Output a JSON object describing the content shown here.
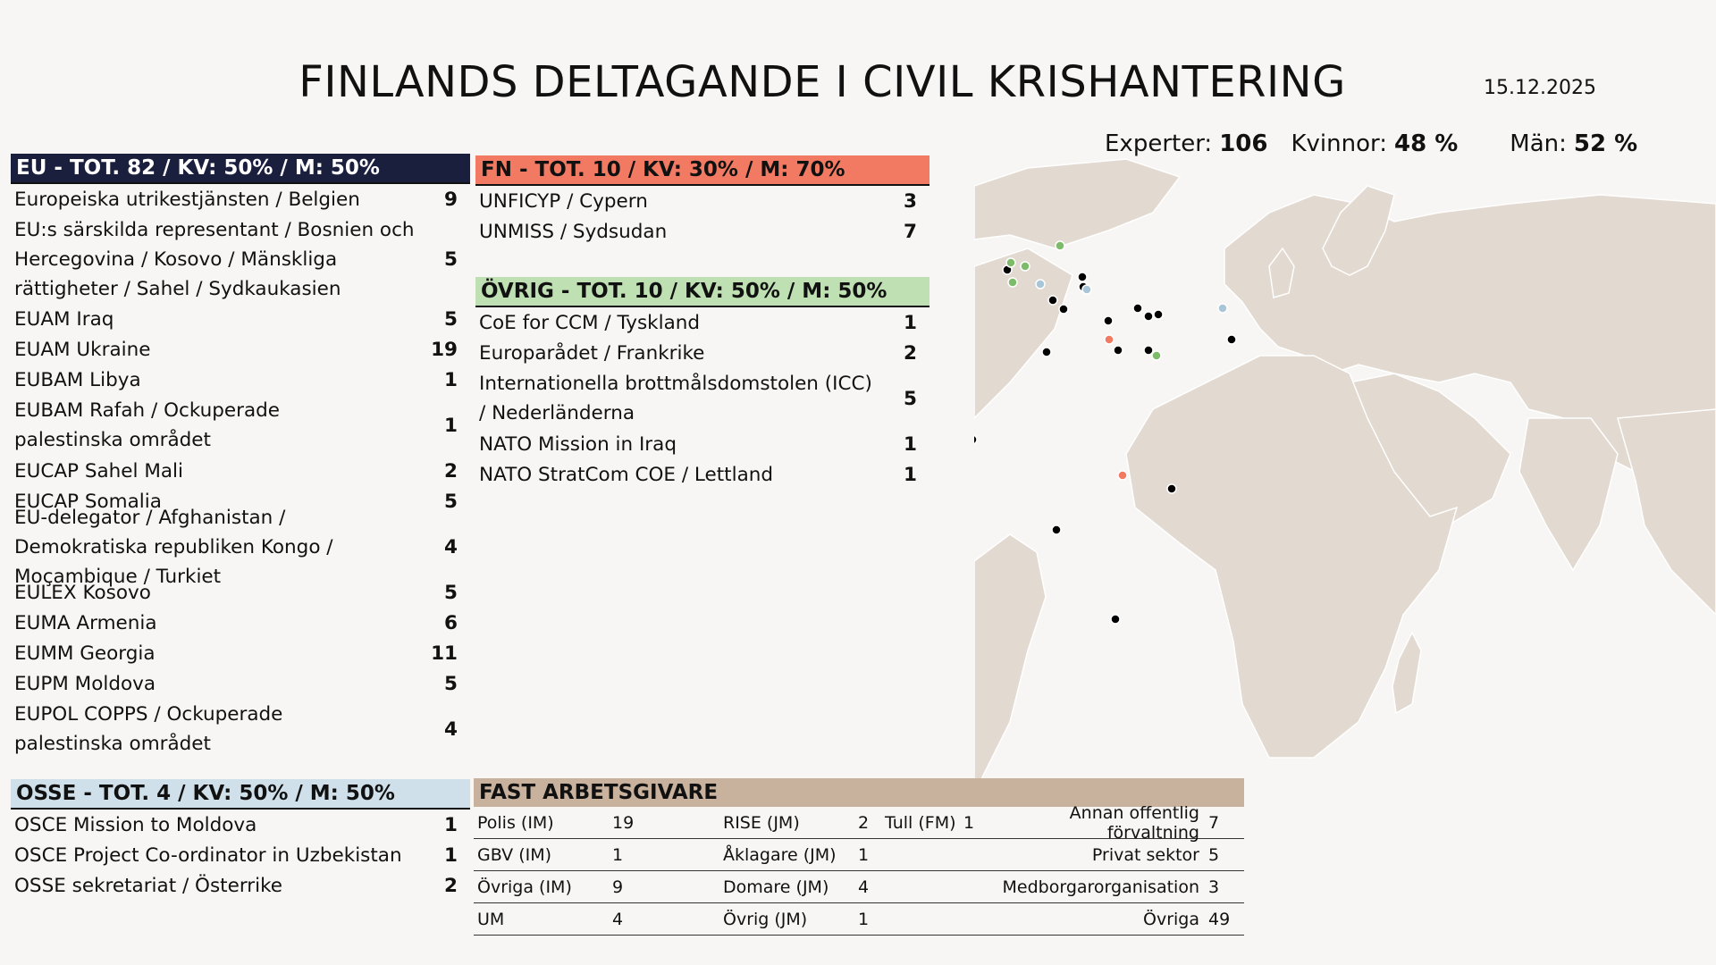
{
  "header": {
    "title": "FINLANDS DELTAGANDE I CIVIL KRISHANTERING",
    "date": "15.12.2025",
    "stats": [
      {
        "label": "Experter:",
        "value": "106"
      },
      {
        "label": "Kvinnor:",
        "value": "48 %"
      },
      {
        "label": "Män:",
        "value": "52 %"
      }
    ]
  },
  "eu": {
    "heading": "EU - TOT. 82 / KV: 50% / M: 50%",
    "items": [
      {
        "name": "Europeiska utrikestjänsten / Belgien",
        "count": "9"
      },
      {
        "name": "EU:s särskilda representant / Bosnien och Hercegovina / Kosovo / Mänskliga rättigheter / Sahel / Sydkaukasien",
        "count": "5"
      },
      {
        "name": "EUAM Iraq",
        "count": "5"
      },
      {
        "name": "EUAM Ukraine",
        "count": "19"
      },
      {
        "name": "EUBAM Libya",
        "count": "1"
      },
      {
        "name": "EUBAM Rafah / Ockuperade palestinska området",
        "count": "1"
      },
      {
        "name": "EUCAP Sahel Mali",
        "count": "2"
      },
      {
        "name": "EUCAP Somalia",
        "count": "5"
      },
      {
        "name": "EU-delegator / Afghanistan / Demokratiska republiken Kongo / Moçambique / Turkiet",
        "count": "4"
      },
      {
        "name": "EULEX Kosovo",
        "count": "5"
      },
      {
        "name": "EUMA Armenia",
        "count": "6"
      },
      {
        "name": "EUMM Georgia",
        "count": "11"
      },
      {
        "name": "EUPM Moldova",
        "count": "5"
      },
      {
        "name": "EUPOL COPPS / Ockuperade palestinska området",
        "count": "4"
      }
    ]
  },
  "fn": {
    "heading": "FN - TOT. 10 / KV: 30% / M: 70%",
    "items": [
      {
        "name": "UNFICYP / Cypern",
        "count": "3"
      },
      {
        "name": "UNMISS / Sydsudan",
        "count": "7"
      }
    ]
  },
  "ovrig": {
    "heading": "ÖVRIG - TOT. 10 / KV: 50% / M: 50%",
    "items": [
      {
        "name": "CoE for CCM / Tyskland",
        "count": "1"
      },
      {
        "name": "Europarådet / Frankrike",
        "count": "2"
      },
      {
        "name": "Internationella brottmålsdomstolen (ICC) / Nederländerna",
        "count": "5"
      },
      {
        "name": "NATO Mission in Iraq",
        "count": "1"
      },
      {
        "name": "NATO StratCom COE / Lettland",
        "count": "1"
      }
    ]
  },
  "osse": {
    "heading": "OSSE - TOT. 4 / KV: 50% / M: 50%",
    "items": [
      {
        "name": "OSCE Mission to Moldova",
        "count": "1"
      },
      {
        "name": "OSCE Project Co-ordinator in Uzbekistan",
        "count": "1"
      },
      {
        "name": "OSSE sekretariat / Österrike",
        "count": "2"
      }
    ]
  },
  "fast": {
    "heading": "FAST ARBETSGIVARE",
    "col1": [
      {
        "label": "Polis (IM)",
        "value": "19"
      },
      {
        "label": "GBV (IM)",
        "value": "1"
      },
      {
        "label": "Övriga (IM)",
        "value": "9"
      },
      {
        "label": "UM",
        "value": "4"
      }
    ],
    "col2": [
      {
        "label": "RISE (JM)",
        "value": "2"
      },
      {
        "label": "Åklagare (JM)",
        "value": "1"
      },
      {
        "label": "Domare (JM)",
        "value": "4"
      },
      {
        "label": "Övrig (JM)",
        "value": "1"
      }
    ],
    "col3": [
      {
        "label": "Tull (FM)",
        "value": "1"
      },
      {
        "label": "",
        "value": ""
      },
      {
        "label": "",
        "value": ""
      },
      {
        "label": "",
        "value": ""
      }
    ],
    "col4": [
      {
        "label": "Annan offentlig förvaltning",
        "value": "7"
      },
      {
        "label": "Privat sektor",
        "value": "5"
      },
      {
        "label": "Medborgarorganisation",
        "value": "3"
      },
      {
        "label": "Övriga",
        "value": "49"
      }
    ]
  },
  "map": {
    "colors": {
      "eu": "#000000",
      "fn": "#f27a62",
      "ovrig": "#7dbb6b",
      "osse": "#a9c6d8",
      "land": "#e2d9d0",
      "border": "#ffffff"
    }
  }
}
